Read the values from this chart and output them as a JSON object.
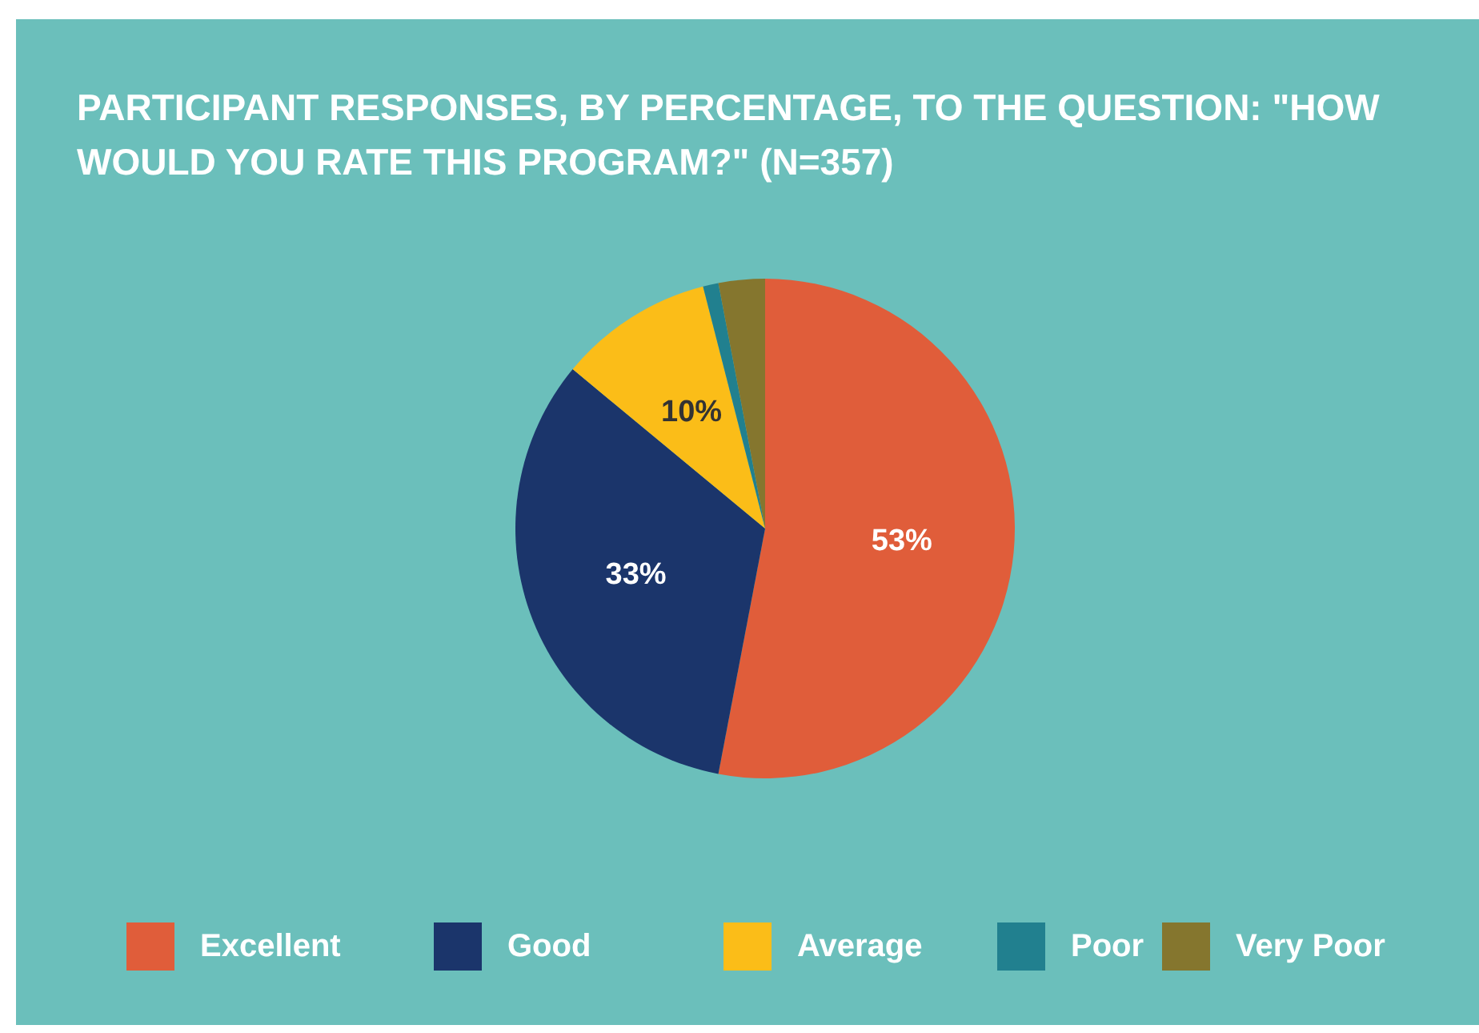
{
  "chart_data": {
    "type": "pie",
    "title": "PARTICIPANT RESPONSES, BY PERCENTAGE, TO THE QUESTION: \"HOW WOULD YOU RATE THIS PROGRAM?\" (N=357)",
    "categories": [
      "Excellent",
      "Good",
      "Average",
      "Poor",
      "Very Poor"
    ],
    "values": [
      53,
      33,
      10,
      1,
      3
    ],
    "colors": [
      "#e05d3a",
      "#1b356b",
      "#fbbd18",
      "#21808f",
      "#85762e"
    ],
    "value_labels": [
      "53%",
      "33%",
      "10%",
      null,
      null
    ],
    "legend": "bottom"
  }
}
